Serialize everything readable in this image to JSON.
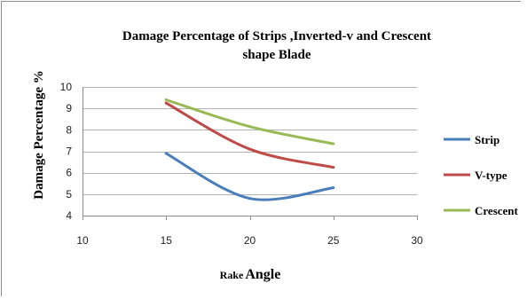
{
  "chart_data": {
    "type": "line",
    "title": "Damage Percentage of Strips ,Inverted-v and Crescent shape Blade",
    "title_lines": [
      "Damage Percentage of Strips ,Inverted-v and Crescent",
      "shape Blade"
    ],
    "xlabel": "Rake Angle",
    "xlabel_parts": [
      "Rake",
      "Angle"
    ],
    "ylabel": "Damage Percentage %",
    "xlim": [
      10,
      30
    ],
    "ylim": [
      4,
      10
    ],
    "xticks": [
      10,
      15,
      20,
      25,
      30
    ],
    "yticks": [
      4,
      5,
      6,
      7,
      8,
      9,
      10
    ],
    "grid": "horizontal",
    "legend_position": "right",
    "series": [
      {
        "name": "Strip",
        "color": "#4a7ebb",
        "x": [
          15,
          20,
          25
        ],
        "y": [
          6.9,
          4.8,
          5.3
        ]
      },
      {
        "name": "V-type",
        "color": "#be4b48",
        "x": [
          15,
          20,
          25
        ],
        "y": [
          9.25,
          7.1,
          6.25
        ]
      },
      {
        "name": "Crescent",
        "color": "#98b954",
        "x": [
          15,
          20,
          25
        ],
        "y": [
          9.4,
          8.15,
          7.35
        ]
      }
    ]
  }
}
